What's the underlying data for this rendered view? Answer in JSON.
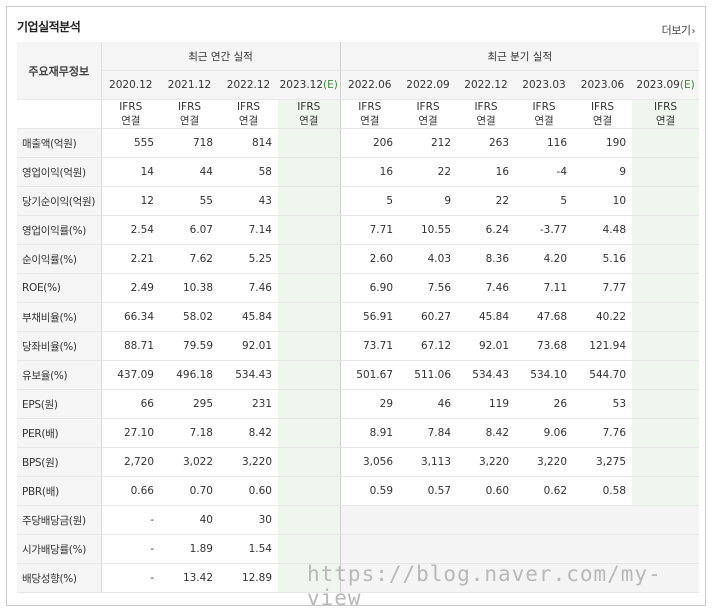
{
  "header": {
    "title": "기업실적분석",
    "more_label": "더보기",
    "more_arrow": "›"
  },
  "table": {
    "corner_label": "주요재무정보",
    "annual_group": "최근 연간 실적",
    "quarter_group": "최근 분기 실적",
    "annual_periods": [
      "2020.12",
      "2021.12",
      "2022.12",
      "2023.12(E)"
    ],
    "quarter_periods": [
      "2022.06",
      "2022.09",
      "2022.12",
      "2023.03",
      "2023.06",
      "2023.09(E)"
    ],
    "ifrs_line1": "IFRS",
    "ifrs_line2": "연결",
    "rows": [
      {
        "label": "매출액(억원)",
        "annual": [
          "555",
          "718",
          "814",
          ""
        ],
        "quarter": [
          "206",
          "212",
          "263",
          "116",
          "190",
          ""
        ]
      },
      {
        "label": "영업이익(억원)",
        "annual": [
          "14",
          "44",
          "58",
          ""
        ],
        "quarter": [
          "16",
          "22",
          "16",
          "-4",
          "9",
          ""
        ]
      },
      {
        "label": "당기순이익(억원)",
        "annual": [
          "12",
          "55",
          "43",
          ""
        ],
        "quarter": [
          "5",
          "9",
          "22",
          "5",
          "10",
          ""
        ]
      },
      {
        "label": "영업이익률(%)",
        "annual": [
          "2.54",
          "6.07",
          "7.14",
          ""
        ],
        "quarter": [
          "7.71",
          "10.55",
          "6.24",
          "-3.77",
          "4.48",
          ""
        ]
      },
      {
        "label": "순이익률(%)",
        "annual": [
          "2.21",
          "7.62",
          "5.25",
          ""
        ],
        "quarter": [
          "2.60",
          "4.03",
          "8.36",
          "4.20",
          "5.16",
          ""
        ]
      },
      {
        "label": "ROE(%)",
        "annual": [
          "2.49",
          "10.38",
          "7.46",
          ""
        ],
        "quarter": [
          "6.90",
          "7.56",
          "7.46",
          "7.11",
          "7.77",
          ""
        ]
      },
      {
        "label": "부채비율(%)",
        "annual": [
          "66.34",
          "58.02",
          "45.84",
          ""
        ],
        "quarter": [
          "56.91",
          "60.27",
          "45.84",
          "47.68",
          "40.22",
          ""
        ]
      },
      {
        "label": "당좌비율(%)",
        "annual": [
          "88.71",
          "79.59",
          "92.01",
          ""
        ],
        "quarter": [
          "73.71",
          "67.12",
          "92.01",
          "73.68",
          "121.94",
          ""
        ]
      },
      {
        "label": "유보율(%)",
        "annual": [
          "437.09",
          "496.18",
          "534.43",
          ""
        ],
        "quarter": [
          "501.67",
          "511.06",
          "534.43",
          "534.10",
          "544.70",
          ""
        ]
      },
      {
        "label": "EPS(원)",
        "annual": [
          "66",
          "295",
          "231",
          ""
        ],
        "quarter": [
          "29",
          "46",
          "119",
          "26",
          "53",
          ""
        ]
      },
      {
        "label": "PER(배)",
        "annual": [
          "27.10",
          "7.18",
          "8.42",
          ""
        ],
        "quarter": [
          "8.91",
          "7.84",
          "8.42",
          "9.06",
          "7.76",
          ""
        ]
      },
      {
        "label": "BPS(원)",
        "annual": [
          "2,720",
          "3,022",
          "3,220",
          ""
        ],
        "quarter": [
          "3,056",
          "3,113",
          "3,220",
          "3,220",
          "3,275",
          ""
        ]
      },
      {
        "label": "PBR(배)",
        "annual": [
          "0.66",
          "0.70",
          "0.60",
          ""
        ],
        "quarter": [
          "0.59",
          "0.57",
          "0.60",
          "0.62",
          "0.58",
          ""
        ]
      },
      {
        "label": "주당배당금(원)",
        "annual": [
          "-",
          "40",
          "30",
          ""
        ],
        "quarter": null
      },
      {
        "label": "시가배당률(%)",
        "annual": [
          "-",
          "1.89",
          "1.54",
          ""
        ],
        "quarter": null
      },
      {
        "label": "배당성향(%)",
        "annual": [
          "-",
          "13.42",
          "12.89",
          ""
        ],
        "quarter": null
      }
    ]
  },
  "colors": {
    "ifrs": "#e55b0a",
    "negative": "#e02020",
    "estimate_bg": "#eef6ee"
  },
  "watermark": "https://blog.naver.com/my-view"
}
